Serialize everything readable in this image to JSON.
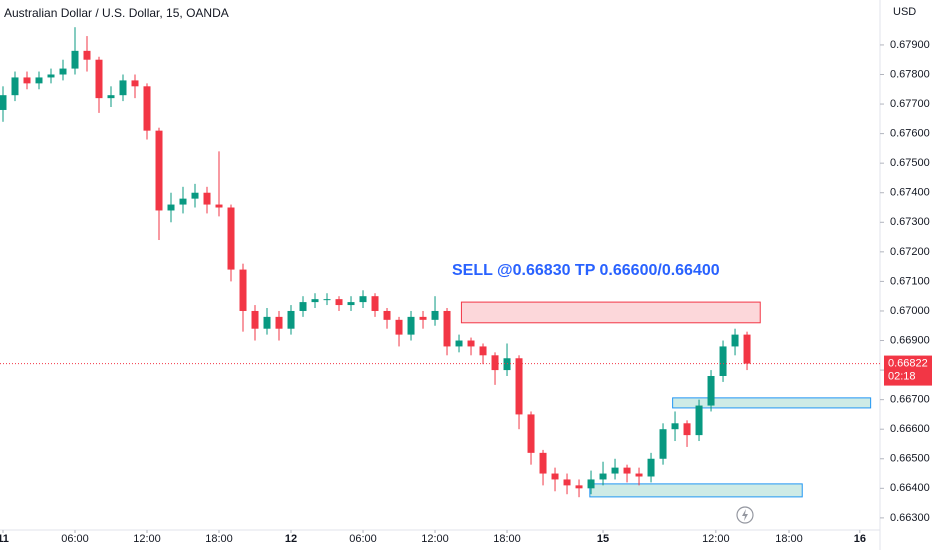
{
  "chart_data": {
    "type": "candlestick",
    "title": "Australian Dollar / U.S. Dollar, 15, OANDA",
    "y_unit": "USD",
    "annotation": "SELL @0.66830 TP 0.66600/0.66400",
    "annotation_color": "#2962ff",
    "up_color": "#089981",
    "down_color": "#f23645",
    "grid": false,
    "open": [
      0.6768,
      0.6773,
      0.6779,
      0.6777,
      0.6779,
      0.678,
      0.6782,
      0.6788,
      0.6785,
      0.6772,
      0.6773,
      0.6778,
      0.6776,
      0.6761,
      0.6734,
      0.6736,
      0.6738,
      0.674,
      0.6736,
      0.6735,
      0.6714,
      0.67,
      0.6694,
      0.6698,
      0.6694,
      0.67,
      0.6703,
      0.6704,
      0.6704,
      0.6702,
      0.6703,
      0.6705,
      0.67,
      0.6697,
      0.6692,
      0.6698,
      0.6697,
      0.67,
      0.6688,
      0.669,
      0.6688,
      0.6685,
      0.668,
      0.6684,
      0.6665,
      0.6652,
      0.6645,
      0.6643,
      0.6641,
      0.664,
      0.6643,
      0.6645,
      0.6647,
      0.6645,
      0.6644,
      0.665,
      0.666,
      0.6662,
      0.6658,
      0.6668,
      0.6678,
      0.6688,
      0.6692
    ],
    "high": [
      0.6776,
      0.6781,
      0.6781,
      0.6781,
      0.6782,
      0.6785,
      0.6796,
      0.6793,
      0.6786,
      0.6776,
      0.678,
      0.678,
      0.6777,
      0.6762,
      0.674,
      0.6742,
      0.6743,
      0.6742,
      0.6754,
      0.6736,
      0.6716,
      0.6702,
      0.6701,
      0.67,
      0.6702,
      0.6705,
      0.6706,
      0.6706,
      0.6705,
      0.6705,
      0.6707,
      0.6706,
      0.6701,
      0.6698,
      0.67,
      0.67,
      0.6705,
      0.6701,
      0.6692,
      0.6691,
      0.6689,
      0.6686,
      0.6689,
      0.6685,
      0.6666,
      0.6653,
      0.6647,
      0.6645,
      0.6643,
      0.6646,
      0.6649,
      0.665,
      0.6648,
      0.6647,
      0.6652,
      0.6662,
      0.6666,
      0.6663,
      0.667,
      0.668,
      0.669,
      0.6694,
      0.6693
    ],
    "low": [
      0.6764,
      0.6771,
      0.6775,
      0.6775,
      0.6777,
      0.6778,
      0.678,
      0.6781,
      0.6767,
      0.6769,
      0.6771,
      0.6772,
      0.6758,
      0.6724,
      0.673,
      0.6733,
      0.6735,
      0.6733,
      0.6732,
      0.671,
      0.6693,
      0.669,
      0.6692,
      0.669,
      0.6692,
      0.6698,
      0.6701,
      0.6702,
      0.67,
      0.67,
      0.6701,
      0.6698,
      0.6694,
      0.6688,
      0.669,
      0.6694,
      0.6695,
      0.6685,
      0.6686,
      0.6685,
      0.6682,
      0.6675,
      0.6678,
      0.666,
      0.6648,
      0.6641,
      0.6639,
      0.6638,
      0.6637,
      0.6638,
      0.6641,
      0.6643,
      0.6642,
      0.6641,
      0.6642,
      0.6648,
      0.6656,
      0.6654,
      0.6656,
      0.6666,
      0.6676,
      0.6685,
      0.668
    ],
    "close": [
      0.6773,
      0.6779,
      0.6777,
      0.6779,
      0.678,
      0.6782,
      0.6788,
      0.6785,
      0.6772,
      0.6773,
      0.6778,
      0.6776,
      0.6761,
      0.6734,
      0.6736,
      0.6738,
      0.674,
      0.6736,
      0.6735,
      0.6714,
      0.67,
      0.6694,
      0.6698,
      0.6694,
      0.67,
      0.6703,
      0.6704,
      0.6704,
      0.6702,
      0.6703,
      0.6705,
      0.67,
      0.6697,
      0.6692,
      0.6698,
      0.6697,
      0.67,
      0.6688,
      0.669,
      0.6688,
      0.6685,
      0.668,
      0.6684,
      0.6665,
      0.6652,
      0.6645,
      0.6643,
      0.6641,
      0.664,
      0.6643,
      0.6645,
      0.6647,
      0.6645,
      0.6644,
      0.665,
      0.666,
      0.6662,
      0.6658,
      0.6668,
      0.6678,
      0.6688,
      0.6692,
      0.66822
    ],
    "xlim": [
      -0.25,
      73.08
    ],
    "xticks": [
      {
        "value": 0,
        "label": "11"
      },
      {
        "value": 6,
        "label": "06:00"
      },
      {
        "value": 12,
        "label": "12:00"
      },
      {
        "value": 18,
        "label": "18:00"
      },
      {
        "value": 24,
        "label": "12"
      },
      {
        "value": 30,
        "label": "06:00"
      },
      {
        "value": 36,
        "label": "12:00"
      },
      {
        "value": 42,
        "label": "18:00"
      },
      {
        "value": 50,
        "label": "15"
      },
      {
        "value": 59.4,
        "label": "12:00"
      },
      {
        "value": 65.5,
        "label": "18:00"
      },
      {
        "value": 71.4,
        "label": "16"
      }
    ],
    "ylim": [
      0.66259,
      0.68052
    ],
    "yticks": [
      {
        "value": 0.663,
        "label": "0.66300"
      },
      {
        "value": 0.664,
        "label": "0.66400"
      },
      {
        "value": 0.665,
        "label": "0.66500"
      },
      {
        "value": 0.666,
        "label": "0.66600"
      },
      {
        "value": 0.667,
        "label": "0.66700"
      },
      {
        "value": 0.668,
        "label": "0.66800"
      },
      {
        "value": 0.669,
        "label": "0.66900"
      },
      {
        "value": 0.67,
        "label": "0.67000"
      },
      {
        "value": 0.671,
        "label": "0.67100"
      },
      {
        "value": 0.672,
        "label": "0.67200"
      },
      {
        "value": 0.673,
        "label": "0.67300"
      },
      {
        "value": 0.674,
        "label": "0.67400"
      },
      {
        "value": 0.675,
        "label": "0.67500"
      },
      {
        "value": 0.676,
        "label": "0.67600"
      },
      {
        "value": 0.677,
        "label": "0.67700"
      },
      {
        "value": 0.678,
        "label": "0.67800"
      },
      {
        "value": 0.679,
        "label": "0.67900"
      }
    ],
    "last_price": {
      "value": 0.66822,
      "label": "0.66822"
    },
    "countdown": "02:18",
    "zones": [
      {
        "x": [
          38.2,
          63.1
        ],
        "y": [
          0.6696,
          0.6703
        ],
        "color": "#f23645"
      },
      {
        "x": [
          55.8,
          72.3
        ],
        "y": [
          0.66672,
          0.66706
        ],
        "color": "#2196f3"
      },
      {
        "x": [
          48.9,
          66.6
        ],
        "y": [
          0.66371,
          0.66415
        ],
        "color": "#2196f3"
      }
    ]
  }
}
